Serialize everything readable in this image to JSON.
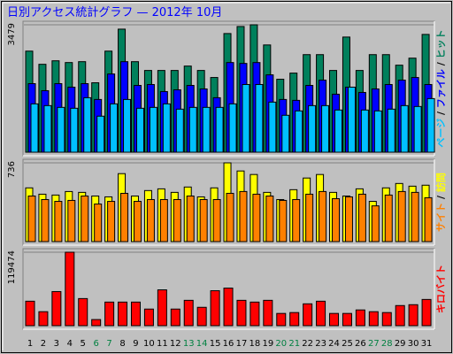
{
  "chart_data": [
    {
      "type": "bar",
      "title": "日別アクセス統計グラフ — 2012年 10月",
      "ylim": [
        0,
        3479
      ],
      "yticks": [
        3479
      ],
      "series": [
        {
          "name": "ヒット",
          "color": "#00805c",
          "values": [
            2760,
            2400,
            2496,
            2448,
            2472,
            1896,
            2760,
            3360,
            2472,
            2232,
            2232,
            2232,
            2352,
            2232,
            2040,
            3240,
            3432,
            3479,
            2928,
            1992,
            2160,
            2664,
            2664,
            2232,
            3144,
            2232,
            2664,
            2664,
            2376,
            2568,
            3216
          ]
        },
        {
          "name": "ファイル",
          "color": "#0000ff",
          "values": [
            1872,
            1680,
            1872,
            1776,
            1872,
            1440,
            2136,
            2472,
            1824,
            1848,
            1656,
            1704,
            1824,
            1728,
            1488,
            2448,
            2424,
            2448,
            2112,
            1440,
            1416,
            1824,
            1968,
            1584,
            1776,
            1632,
            1728,
            1848,
            1968,
            2040,
            1848
          ]
        },
        {
          "name": "ページ",
          "color": "#00c0ff",
          "values": [
            1320,
            1272,
            1224,
            1200,
            1488,
            984,
            1320,
            1440,
            1200,
            1224,
            1320,
            1176,
            1224,
            1224,
            1224,
            1320,
            1848,
            1848,
            1368,
            1008,
            1128,
            1272,
            1272,
            1152,
            1776,
            1152,
            1128,
            1176,
            1272,
            1248,
            1464
          ]
        }
      ]
    },
    {
      "type": "bar",
      "ylim": [
        0,
        736
      ],
      "yticks": [
        736
      ],
      "series": [
        {
          "name": "訪問",
          "color": "#ffff00",
          "values": [
            502,
            443,
            435,
            468,
            460,
            426,
            418,
            635,
            426,
            477,
            493,
            460,
            510,
            418,
            502,
            736,
            660,
            627,
            460,
            393,
            485,
            594,
            627,
            460,
            426,
            493,
            376,
            502,
            543,
            518,
            527
          ]
        },
        {
          "name": "サイト",
          "color": "#ff8000",
          "values": [
            426,
            393,
            376,
            385,
            426,
            351,
            376,
            451,
            376,
            393,
            393,
            393,
            426,
            393,
            393,
            451,
            468,
            443,
            426,
            385,
            393,
            443,
            468,
            401,
            418,
            443,
            334,
            435,
            468,
            460,
            410
          ]
        }
      ]
    },
    {
      "type": "bar",
      "ylim": [
        0,
        119474
      ],
      "yticks": [
        119474
      ],
      "categories": [
        "1",
        "2",
        "3",
        "4",
        "5",
        "6",
        "7",
        "8",
        "9",
        "10",
        "11",
        "12",
        "13",
        "14",
        "15",
        "16",
        "17",
        "18",
        "19",
        "20",
        "21",
        "22",
        "23",
        "24",
        "25",
        "26",
        "27",
        "28",
        "29",
        "30",
        "31"
      ],
      "category_colors": [
        "#000000",
        "#000000",
        "#000000",
        "#000000",
        "#000000",
        "#008040",
        "#008040",
        "#000000",
        "#000000",
        "#000000",
        "#000000",
        "#000000",
        "#008040",
        "#008040",
        "#000000",
        "#000000",
        "#000000",
        "#000000",
        "#000000",
        "#008040",
        "#008040",
        "#000000",
        "#000000",
        "#000000",
        "#000000",
        "#000000",
        "#008040",
        "#008040",
        "#000000",
        "#000000",
        "#000000"
      ],
      "series": [
        {
          "name": "キロバイト",
          "color": "#ff0000",
          "values": [
            39800,
            22750,
            55460,
            119474,
            44080,
            9950,
            38390,
            38390,
            38390,
            27020,
            58300,
            27020,
            41240,
            29860,
            56880,
            61150,
            41240,
            38390,
            41240,
            19910,
            21330,
            35550,
            39800,
            19910,
            19910,
            25600,
            22750,
            21330,
            32710,
            34130,
            42660
          ]
        }
      ]
    }
  ]
}
